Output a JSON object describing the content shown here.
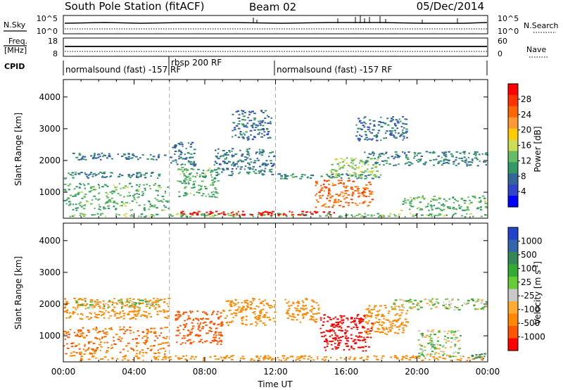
{
  "header": {
    "station": "South Pole Station (fitACF)",
    "beam": "Beam 02",
    "date": "05/Dec/2014"
  },
  "strips": {
    "nsky_label": "N.Sky",
    "nsky_ticks": [
      "10^5",
      "10^0"
    ],
    "nsearch_label": "N.Search",
    "nsearch_ticks": [
      "10^5",
      "10^0"
    ],
    "freq_label_line1": "Freq.",
    "freq_label_line2": "[MHz]",
    "freq_ticks": [
      "18",
      "8"
    ],
    "nave_label": "Nave",
    "nave_ticks": [
      "60",
      "0"
    ],
    "cpid_label": "CPID",
    "cpid_segments": [
      {
        "label": "normalsound (fast) -157 RF",
        "start_h": 0,
        "end_h": 6
      },
      {
        "label": "rbsp 200 RF",
        "start_h": 6,
        "end_h": 12
      },
      {
        "label": "normalsound (fast) -157 RF",
        "start_h": 12,
        "end_h": 24
      }
    ]
  },
  "chart_data": [
    {
      "type": "heatmap",
      "panel": "power",
      "ylabel": "Slant Range [km]",
      "xlabel": "",
      "x_range_h": [
        0,
        24
      ],
      "ylim": [
        180,
        4550
      ],
      "yticks": [
        1000,
        2000,
        3000,
        4000
      ],
      "xticks": [
        "00:00",
        "04:00",
        "08:00",
        "12:00",
        "16:00",
        "20:00",
        "00:00"
      ],
      "colorbar": {
        "label": "Power [dB]",
        "ticks": [
          "28",
          "24",
          "20",
          "16",
          "12",
          "8",
          "4"
        ],
        "colors": [
          "#ff0000",
          "#ff3300",
          "#ff6600",
          "#ff9933",
          "#ffcc00",
          "#ccdd55",
          "#66bb66",
          "#339966",
          "#336699",
          "#3344cc",
          "#0000ff"
        ]
      },
      "regions": [
        {
          "t0": 0,
          "t1": 24,
          "r0": 200,
          "r1": 350,
          "value": 10
        },
        {
          "t0": 6.6,
          "t1": 15.4,
          "r0": 250,
          "r1": 420,
          "value": 28
        },
        {
          "t0": 0,
          "t1": 6,
          "r0": 400,
          "r1": 1300,
          "value": 9
        },
        {
          "t0": 0,
          "t1": 5.5,
          "r0": 1400,
          "r1": 1650,
          "value": 6
        },
        {
          "t0": 0.5,
          "t1": 5.8,
          "r0": 2000,
          "r1": 2250,
          "value": 5
        },
        {
          "t0": 6.4,
          "t1": 8.8,
          "r0": 800,
          "r1": 1800,
          "value": 9
        },
        {
          "t0": 6.0,
          "t1": 7.5,
          "r0": 1800,
          "r1": 2600,
          "value": 5
        },
        {
          "t0": 8.5,
          "t1": 12,
          "r0": 1500,
          "r1": 2400,
          "value": 5
        },
        {
          "t0": 9.5,
          "t1": 11.8,
          "r0": 2600,
          "r1": 3600,
          "value": 4
        },
        {
          "t0": 12,
          "t1": 18,
          "r0": 1400,
          "r1": 1600,
          "value": 6
        },
        {
          "t0": 14.2,
          "t1": 17.5,
          "r0": 500,
          "r1": 1400,
          "value": 22
        },
        {
          "t0": 15,
          "t1": 17.8,
          "r0": 1400,
          "r1": 2100,
          "value": 12
        },
        {
          "t0": 17,
          "t1": 24,
          "r0": 1800,
          "r1": 2300,
          "value": 6
        },
        {
          "t0": 19,
          "t1": 24,
          "r0": 400,
          "r1": 900,
          "value": 9
        },
        {
          "t0": 16.5,
          "t1": 19.5,
          "r0": 2600,
          "r1": 3400,
          "value": 4
        }
      ]
    },
    {
      "type": "heatmap",
      "panel": "velocity",
      "ylabel": "Slant Range [km]",
      "xlabel": "Time UT",
      "x_range_h": [
        0,
        24
      ],
      "ylim": [
        180,
        4550
      ],
      "yticks": [
        1000,
        2000,
        3000,
        4000
      ],
      "xticks": [
        "00:00",
        "04:00",
        "08:00",
        "12:00",
        "16:00",
        "20:00",
        "00:00"
      ],
      "colorbar": {
        "label": "Velocity [m s^-1]",
        "unit_main": "Velocity [m s",
        "unit_sup": "-1",
        "unit_end": "]",
        "ticks": [
          "1000",
          "500",
          "100",
          "25",
          "-25",
          "-100",
          "-500",
          "-1000"
        ],
        "colors": [
          "#2244cc",
          "#3366aa",
          "#338855",
          "#33aa33",
          "#66cc33",
          "#c8c8c8",
          "#ffaa33",
          "#ff8800",
          "#ff5500",
          "#ff0000"
        ]
      },
      "regions": [
        {
          "t0": 0,
          "t1": 6,
          "r0": 400,
          "r1": 1300,
          "value": -300
        },
        {
          "t0": 0,
          "t1": 6,
          "r0": 1500,
          "r1": 2200,
          "value": -150
        },
        {
          "t0": 0.5,
          "t1": 5.5,
          "r0": 1850,
          "r1": 2150,
          "value": 0
        },
        {
          "t0": 0,
          "t1": 24,
          "r0": 200,
          "r1": 400,
          "value": -120
        },
        {
          "t0": 6.3,
          "t1": 9,
          "r0": 700,
          "r1": 1800,
          "value": -600
        },
        {
          "t0": 9,
          "t1": 12,
          "r0": 1300,
          "r1": 2200,
          "value": -200
        },
        {
          "t0": 12.5,
          "t1": 14.5,
          "r0": 1400,
          "r1": 2200,
          "value": -150
        },
        {
          "t0": 14.5,
          "t1": 17.5,
          "r0": 500,
          "r1": 1700,
          "value": -900
        },
        {
          "t0": 17,
          "t1": 19.5,
          "r0": 1000,
          "r1": 2000,
          "value": -200
        },
        {
          "t0": 18.5,
          "t1": 24,
          "r0": 1800,
          "r1": 2200,
          "value": 0
        },
        {
          "t0": 20,
          "t1": 22.5,
          "r0": 300,
          "r1": 1200,
          "value": 0
        },
        {
          "t0": 23,
          "t1": 24,
          "r0": 200,
          "r1": 500,
          "value": 150
        }
      ]
    }
  ]
}
